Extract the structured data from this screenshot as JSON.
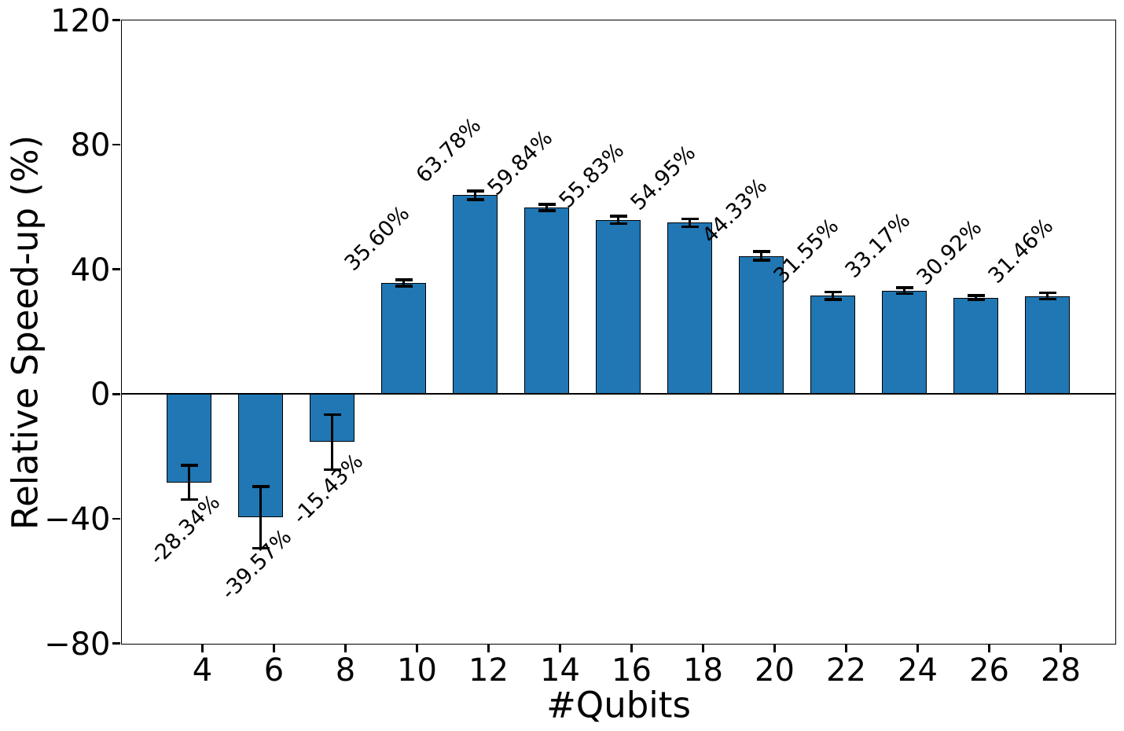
{
  "chart_data": {
    "type": "bar",
    "title": "",
    "xlabel": "#Qubits",
    "ylabel": "Relative Speed-up (%)",
    "categories": [
      4,
      6,
      8,
      10,
      12,
      14,
      16,
      18,
      20,
      22,
      24,
      26,
      28
    ],
    "values": [
      -28.34,
      -39.57,
      -15.43,
      35.6,
      63.78,
      59.84,
      55.83,
      54.95,
      44.33,
      31.55,
      33.17,
      30.92,
      31.46
    ],
    "errors": [
      5.5,
      9.9,
      8.8,
      1.0,
      1.4,
      1.0,
      1.2,
      1.3,
      1.4,
      1.2,
      1.0,
      0.7,
      1.0
    ],
    "bar_labels": [
      "-28.34%",
      "-39.57%",
      "-15.43%",
      "35.60%",
      "63.78%",
      "59.84%",
      "55.83%",
      "54.95%",
      "44.33%",
      "31.55%",
      "33.17%",
      "30.92%",
      "31.46%"
    ],
    "xticklabels": [
      "4",
      "6",
      "8",
      "10",
      "12",
      "14",
      "16",
      "18",
      "20",
      "22",
      "24",
      "26",
      "28"
    ],
    "yticks": [
      120,
      80,
      40,
      0,
      -40,
      -80
    ],
    "yticklabels": [
      "120",
      "80",
      "40",
      "0",
      "−40",
      "−80"
    ],
    "ylim": [
      -80,
      120
    ],
    "grid": false,
    "legend": null,
    "colors": {
      "bar_fill": "#2077b4",
      "bar_edge": "#000000",
      "error_bar": "#000000",
      "text": "#000000",
      "background": "#ffffff"
    }
  }
}
